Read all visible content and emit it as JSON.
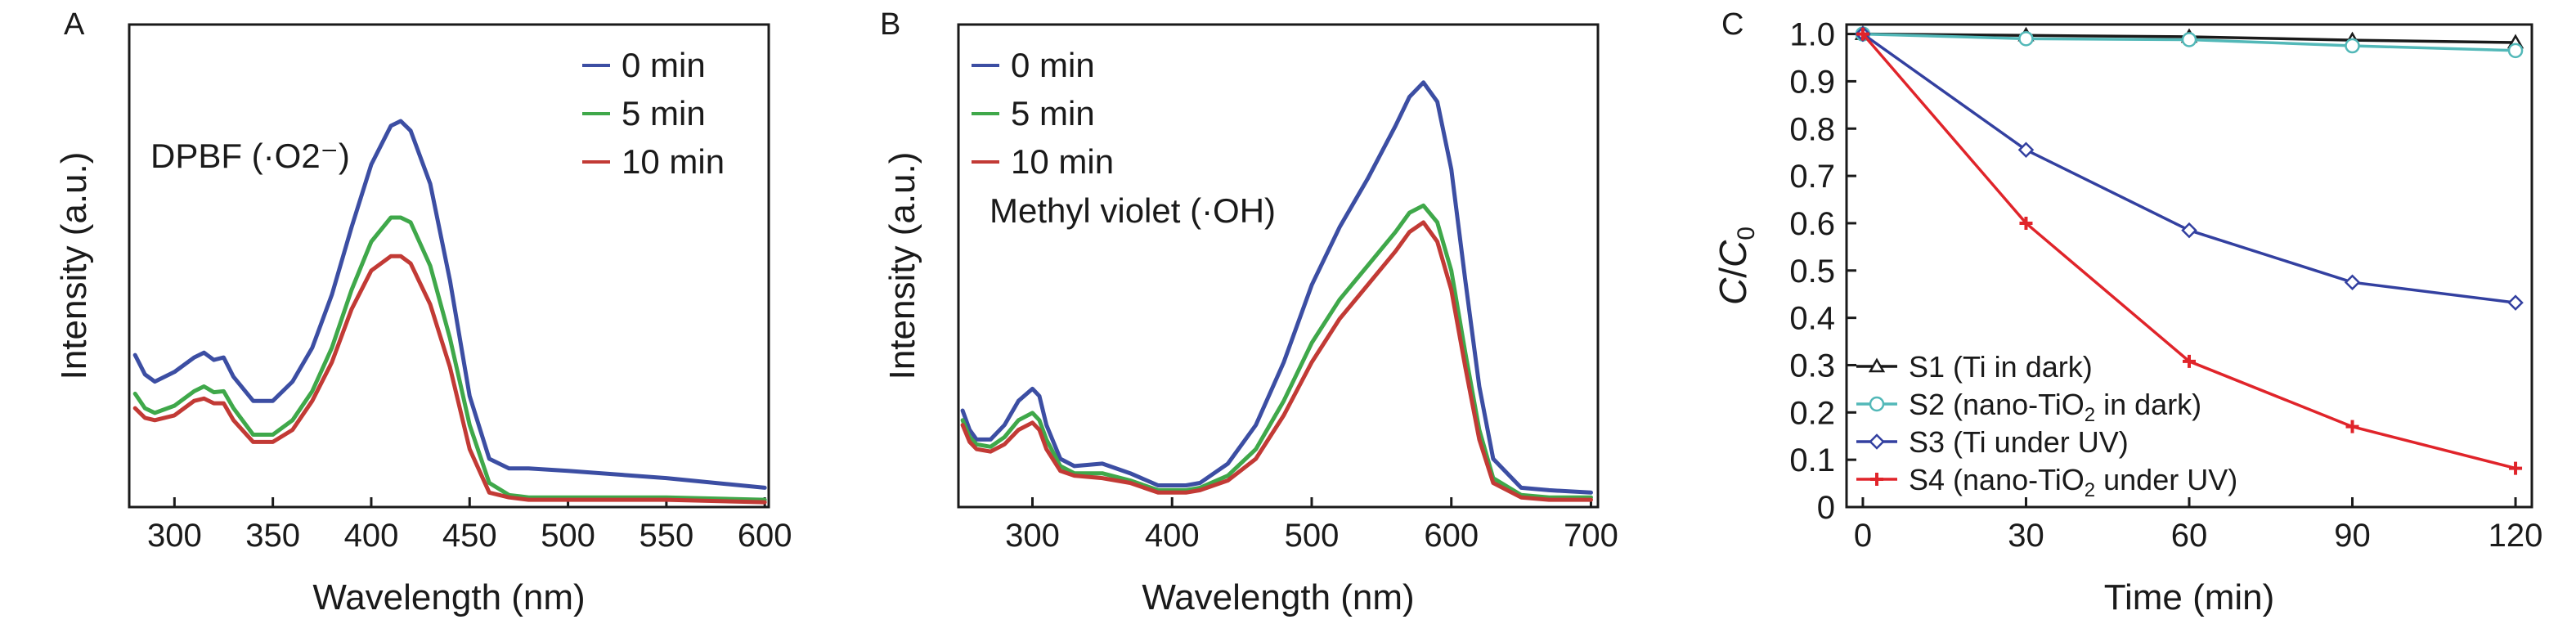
{
  "chart_data": [
    {
      "panel_letter": "A",
      "type": "line",
      "xlabel": "Wavelength (nm)",
      "ylabel": "Intensity (a.u.)",
      "annotation": "DPBF (·O2⁻)",
      "xlim": [
        277,
        602
      ],
      "ylim": [
        0,
        1
      ],
      "xticks": [
        300,
        350,
        400,
        450,
        500,
        550,
        600
      ],
      "yticks_labeled": false,
      "legend_position": "top-right",
      "series": [
        {
          "name": "0 min",
          "color": "#3c4ea3",
          "x": [
            280,
            285,
            290,
            300,
            310,
            315,
            320,
            325,
            330,
            340,
            350,
            360,
            370,
            380,
            390,
            400,
            410,
            415,
            420,
            430,
            440,
            450,
            460,
            470,
            480,
            500,
            550,
            600
          ],
          "y": [
            0.315,
            0.275,
            0.26,
            0.28,
            0.31,
            0.32,
            0.305,
            0.31,
            0.27,
            0.22,
            0.22,
            0.26,
            0.33,
            0.44,
            0.58,
            0.71,
            0.79,
            0.8,
            0.78,
            0.67,
            0.47,
            0.23,
            0.1,
            0.08,
            0.08,
            0.075,
            0.06,
            0.04
          ]
        },
        {
          "name": "5 min",
          "color": "#3fa84a",
          "x": [
            280,
            285,
            290,
            300,
            310,
            315,
            320,
            325,
            330,
            340,
            350,
            360,
            370,
            380,
            390,
            400,
            410,
            415,
            420,
            430,
            440,
            450,
            460,
            470,
            480,
            500,
            550,
            600
          ],
          "y": [
            0.235,
            0.205,
            0.195,
            0.21,
            0.24,
            0.25,
            0.238,
            0.24,
            0.205,
            0.15,
            0.15,
            0.18,
            0.24,
            0.33,
            0.45,
            0.55,
            0.6,
            0.6,
            0.59,
            0.5,
            0.35,
            0.17,
            0.05,
            0.025,
            0.02,
            0.02,
            0.02,
            0.015
          ]
        },
        {
          "name": "10 min",
          "color": "#c23a35",
          "x": [
            280,
            285,
            290,
            300,
            310,
            315,
            320,
            325,
            330,
            340,
            350,
            360,
            370,
            380,
            390,
            400,
            410,
            415,
            420,
            430,
            440,
            450,
            460,
            470,
            480,
            500,
            550,
            600
          ],
          "y": [
            0.205,
            0.185,
            0.18,
            0.19,
            0.22,
            0.225,
            0.215,
            0.215,
            0.18,
            0.135,
            0.135,
            0.16,
            0.22,
            0.3,
            0.41,
            0.49,
            0.52,
            0.52,
            0.505,
            0.42,
            0.29,
            0.12,
            0.03,
            0.02,
            0.015,
            0.015,
            0.015,
            0.01
          ]
        }
      ]
    },
    {
      "panel_letter": "B",
      "type": "line",
      "xlabel": "Wavelength (nm)",
      "ylabel": "Intensity (a.u.)",
      "annotation": "Methyl violet (·OH)",
      "xlim": [
        247,
        705
      ],
      "ylim": [
        0,
        1
      ],
      "xticks": [
        300,
        400,
        500,
        600,
        700
      ],
      "yticks_labeled": false,
      "legend_position": "top-left",
      "series": [
        {
          "name": "0 min",
          "color": "#3c4ea3",
          "x": [
            250,
            255,
            260,
            270,
            280,
            290,
            300,
            305,
            310,
            320,
            330,
            350,
            370,
            390,
            410,
            420,
            440,
            460,
            480,
            500,
            520,
            540,
            560,
            570,
            580,
            590,
            600,
            610,
            620,
            630,
            650,
            670,
            700
          ],
          "y": [
            0.2,
            0.16,
            0.14,
            0.14,
            0.17,
            0.22,
            0.245,
            0.23,
            0.17,
            0.1,
            0.085,
            0.09,
            0.07,
            0.045,
            0.045,
            0.05,
            0.09,
            0.17,
            0.3,
            0.46,
            0.58,
            0.68,
            0.79,
            0.85,
            0.88,
            0.84,
            0.7,
            0.47,
            0.25,
            0.1,
            0.04,
            0.035,
            0.03
          ]
        },
        {
          "name": "5 min",
          "color": "#3fa84a",
          "x": [
            250,
            255,
            260,
            270,
            280,
            290,
            300,
            305,
            310,
            320,
            330,
            350,
            370,
            390,
            410,
            420,
            440,
            460,
            480,
            500,
            520,
            540,
            560,
            570,
            580,
            590,
            600,
            610,
            620,
            630,
            650,
            670,
            700
          ],
          "y": [
            0.18,
            0.145,
            0.13,
            0.125,
            0.145,
            0.18,
            0.195,
            0.18,
            0.14,
            0.085,
            0.07,
            0.07,
            0.055,
            0.035,
            0.035,
            0.04,
            0.065,
            0.12,
            0.22,
            0.34,
            0.43,
            0.5,
            0.57,
            0.61,
            0.625,
            0.59,
            0.49,
            0.32,
            0.16,
            0.06,
            0.025,
            0.02,
            0.02
          ]
        },
        {
          "name": "10 min",
          "color": "#c23a35",
          "x": [
            250,
            255,
            260,
            270,
            280,
            290,
            300,
            305,
            310,
            320,
            330,
            350,
            370,
            390,
            410,
            420,
            440,
            460,
            480,
            500,
            520,
            540,
            560,
            570,
            580,
            590,
            600,
            610,
            620,
            630,
            650,
            670,
            700
          ],
          "y": [
            0.17,
            0.135,
            0.12,
            0.115,
            0.13,
            0.16,
            0.175,
            0.16,
            0.12,
            0.075,
            0.065,
            0.06,
            0.05,
            0.03,
            0.03,
            0.035,
            0.055,
            0.1,
            0.19,
            0.3,
            0.39,
            0.46,
            0.53,
            0.57,
            0.59,
            0.55,
            0.45,
            0.29,
            0.14,
            0.05,
            0.02,
            0.015,
            0.015
          ]
        }
      ]
    },
    {
      "panel_letter": "C",
      "type": "line",
      "xlabel": "Time (min)",
      "ylabel_main": "C",
      "ylabel_sep": "/",
      "ylabel_sub_base": "C",
      "ylabel_sub": "0",
      "xlim": [
        -3,
        123
      ],
      "ylim": [
        0,
        1.02
      ],
      "xticks": [
        0,
        30,
        60,
        90,
        120
      ],
      "yticks": [
        0,
        0.1,
        0.2,
        0.3,
        0.4,
        0.5,
        0.6,
        0.7,
        0.8,
        0.9,
        1.0
      ],
      "ytick_labels": [
        "0",
        "0.1",
        "0.2",
        "0.3",
        "0.4",
        "0.5",
        "0.6",
        "0.7",
        "0.8",
        "0.9",
        "1.0"
      ],
      "legend_position": "bottom-left",
      "series": [
        {
          "label_pre": "S1 (Ti in dark)",
          "label_sub": "",
          "label_post": "",
          "color": "#1a1a1a",
          "marker": "triangle",
          "x": [
            0,
            30,
            60,
            90,
            120
          ],
          "y": [
            1.0,
            0.997,
            0.994,
            0.987,
            0.982
          ]
        },
        {
          "label_pre": "S2 (nano-TiO",
          "label_sub": "2",
          "label_post": " in dark)",
          "color": "#52b8b8",
          "marker": "circle",
          "x": [
            0,
            30,
            60,
            90,
            120
          ],
          "y": [
            1.0,
            0.99,
            0.988,
            0.975,
            0.965
          ]
        },
        {
          "label_pre": "S3 (Ti under UV)",
          "label_sub": "",
          "label_post": "",
          "color": "#3340a0",
          "marker": "diamond",
          "x": [
            0,
            30,
            60,
            90,
            120
          ],
          "y": [
            1.0,
            0.755,
            0.585,
            0.475,
            0.432
          ]
        },
        {
          "label_pre": "S4 (nano-TiO",
          "label_sub": "2",
          "label_post": " under UV)",
          "color": "#e0242a",
          "marker": "plus",
          "x": [
            0,
            30,
            60,
            90,
            120
          ],
          "y": [
            1.0,
            0.6,
            0.308,
            0.17,
            0.082
          ]
        }
      ]
    }
  ]
}
